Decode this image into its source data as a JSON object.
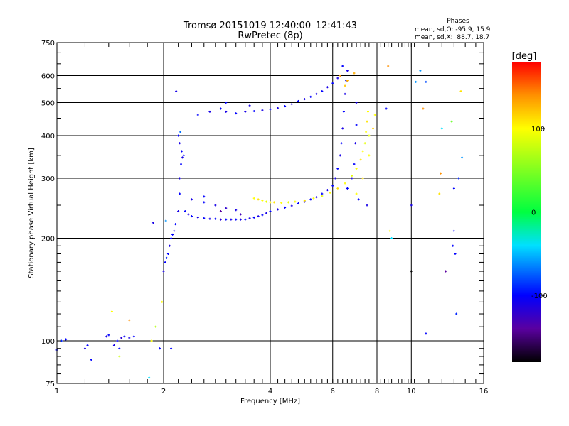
{
  "chart_data": {
    "type": "scatter",
    "title": "Tromsø 20151019 12:40:00–12:41:43",
    "subtitle": "RwPretec (8p)",
    "xlabel": "Frequency [MHz]",
    "ylabel": "Stationary phase Virtual Height [km]",
    "xscale": "log",
    "yscale": "log",
    "xlim": [
      1,
      16
    ],
    "ylim": [
      75,
      750
    ],
    "xticks": [
      1,
      2,
      4,
      6,
      8,
      10,
      16
    ],
    "yticks": [
      75,
      100,
      200,
      300,
      400,
      500,
      600,
      750
    ],
    "grid_x": [
      2,
      4,
      6,
      8,
      10
    ],
    "grid_y": [
      100,
      200,
      300,
      400,
      500,
      600
    ],
    "stats": {
      "heading": "Phases",
      "o_line": "mean, sd,O: -95.9, 15.9",
      "x_line": "mean, sd,X:  88.7, 18.7"
    },
    "colorbar": {
      "label": "[deg]",
      "range": [
        -180,
        180
      ],
      "ticks": [
        {
          "value": 100,
          "label": "100"
        },
        {
          "value": 0,
          "label": "0"
        },
        {
          "value": -100,
          "label": "-100"
        }
      ],
      "stops": [
        [
          -180,
          "#000000"
        ],
        [
          -140,
          "#5a00a0"
        ],
        [
          -100,
          "#0000ff"
        ],
        [
          -40,
          "#00e0ff"
        ],
        [
          0,
          "#00ff40"
        ],
        [
          100,
          "#ffff00"
        ],
        [
          140,
          "#ff9000"
        ],
        [
          180,
          "#ff0000"
        ]
      ]
    },
    "points_columns": [
      "frequency_mhz",
      "height_km",
      "phase_deg"
    ],
    "points": [
      [
        1.0,
        94,
        -100
      ],
      [
        1.03,
        100,
        -90
      ],
      [
        1.06,
        101,
        -100
      ],
      [
        1.2,
        95,
        -110
      ],
      [
        1.22,
        97,
        -100
      ],
      [
        1.25,
        88,
        -100
      ],
      [
        1.38,
        103,
        -110
      ],
      [
        1.4,
        104,
        -100
      ],
      [
        1.45,
        97,
        -110
      ],
      [
        1.48,
        100,
        -100
      ],
      [
        1.5,
        95,
        -100
      ],
      [
        1.52,
        102,
        -120
      ],
      [
        1.55,
        103,
        -100
      ],
      [
        1.6,
        102,
        -110
      ],
      [
        1.65,
        103,
        -100
      ],
      [
        1.43,
        122,
        100
      ],
      [
        1.5,
        90,
        80
      ],
      [
        1.6,
        115,
        140
      ],
      [
        1.82,
        78,
        -40
      ],
      [
        1.85,
        100,
        100
      ],
      [
        1.87,
        222,
        -110
      ],
      [
        1.9,
        110,
        70
      ],
      [
        1.95,
        95,
        -100
      ],
      [
        1.98,
        130,
        100
      ],
      [
        2.0,
        160,
        -110
      ],
      [
        2.02,
        170,
        -100
      ],
      [
        2.04,
        175,
        -90
      ],
      [
        2.06,
        180,
        -100
      ],
      [
        2.08,
        190,
        -110
      ],
      [
        2.1,
        200,
        -100
      ],
      [
        2.12,
        205,
        -100
      ],
      [
        2.14,
        210,
        -110
      ],
      [
        2.16,
        220,
        -100
      ],
      [
        2.03,
        225,
        -60
      ],
      [
        2.1,
        95,
        -100
      ],
      [
        2.2,
        240,
        -110
      ],
      [
        2.22,
        270,
        -100
      ],
      [
        2.22,
        300,
        -110
      ],
      [
        2.24,
        330,
        -100
      ],
      [
        2.25,
        360,
        -100
      ],
      [
        2.26,
        345,
        -110
      ],
      [
        2.2,
        400,
        -100
      ],
      [
        2.22,
        380,
        -110
      ],
      [
        2.28,
        350,
        -100
      ],
      [
        2.17,
        540,
        -110
      ],
      [
        2.23,
        410,
        -70
      ],
      [
        2.3,
        240,
        -100
      ],
      [
        2.35,
        235,
        -110
      ],
      [
        2.4,
        232,
        -100
      ],
      [
        2.5,
        230,
        -110
      ],
      [
        2.6,
        229,
        -100
      ],
      [
        2.7,
        228,
        -110
      ],
      [
        2.8,
        228,
        -100
      ],
      [
        2.9,
        227,
        -120
      ],
      [
        3.0,
        227,
        -100
      ],
      [
        3.1,
        227,
        -110
      ],
      [
        3.2,
        227,
        -100
      ],
      [
        3.3,
        227,
        -110
      ],
      [
        3.4,
        227,
        -100
      ],
      [
        3.5,
        229,
        -110
      ],
      [
        3.6,
        230,
        -100
      ],
      [
        3.7,
        232,
        -110
      ],
      [
        3.8,
        234,
        -100
      ],
      [
        3.9,
        237,
        -110
      ],
      [
        4.0,
        240,
        -100
      ],
      [
        4.2,
        243,
        -110
      ],
      [
        4.4,
        246,
        -100
      ],
      [
        4.6,
        249,
        -110
      ],
      [
        4.8,
        253,
        -100
      ],
      [
        5.0,
        256,
        -110
      ],
      [
        5.2,
        260,
        -100
      ],
      [
        5.4,
        264,
        -110
      ],
      [
        5.6,
        270,
        -100
      ],
      [
        5.8,
        277,
        -110
      ],
      [
        6.0,
        285,
        -100
      ],
      [
        6.1,
        300,
        -110
      ],
      [
        6.2,
        320,
        -100
      ],
      [
        6.3,
        350,
        -110
      ],
      [
        6.35,
        380,
        -100
      ],
      [
        6.4,
        420,
        -110
      ],
      [
        6.45,
        470,
        -100
      ],
      [
        6.5,
        530,
        -110
      ],
      [
        6.55,
        580,
        -100
      ],
      [
        6.6,
        620,
        -110
      ],
      [
        6.4,
        640,
        -100
      ],
      [
        2.4,
        260,
        -110
      ],
      [
        2.6,
        255,
        -100
      ],
      [
        2.8,
        250,
        -110
      ],
      [
        3.0,
        245,
        -120
      ],
      [
        3.2,
        242,
        -110
      ],
      [
        2.6,
        265,
        -100
      ],
      [
        2.9,
        240,
        -140
      ],
      [
        3.3,
        235,
        -130
      ],
      [
        2.5,
        460,
        -100
      ],
      [
        2.7,
        470,
        -110
      ],
      [
        2.9,
        480,
        -100
      ],
      [
        3.0,
        470,
        -110
      ],
      [
        3.2,
        465,
        -100
      ],
      [
        3.4,
        470,
        -110
      ],
      [
        3.6,
        472,
        -100
      ],
      [
        3.8,
        475,
        -110
      ],
      [
        4.0,
        478,
        -100
      ],
      [
        4.2,
        482,
        -110
      ],
      [
        4.4,
        488,
        -100
      ],
      [
        4.6,
        495,
        -110
      ],
      [
        4.8,
        505,
        -100
      ],
      [
        5.0,
        512,
        -110
      ],
      [
        5.2,
        520,
        -100
      ],
      [
        5.4,
        530,
        -110
      ],
      [
        5.6,
        540,
        -100
      ],
      [
        5.8,
        555,
        -110
      ],
      [
        6.0,
        570,
        -100
      ],
      [
        6.2,
        590,
        -110
      ],
      [
        3.0,
        500,
        -100
      ],
      [
        3.5,
        490,
        -110
      ],
      [
        6.3,
        600,
        140
      ],
      [
        6.5,
        560,
        120
      ],
      [
        6.6,
        580,
        130
      ],
      [
        6.9,
        610,
        130
      ],
      [
        3.6,
        262,
        100
      ],
      [
        3.7,
        260,
        110
      ],
      [
        3.8,
        258,
        100
      ],
      [
        3.9,
        256,
        90
      ],
      [
        4.0,
        255,
        100
      ],
      [
        4.1,
        255,
        110
      ],
      [
        4.3,
        254,
        100
      ],
      [
        4.5,
        255,
        90
      ],
      [
        4.7,
        256,
        100
      ],
      [
        5.0,
        258,
        110
      ],
      [
        5.3,
        262,
        100
      ],
      [
        5.6,
        266,
        90
      ],
      [
        5.9,
        272,
        100
      ],
      [
        6.2,
        280,
        110
      ],
      [
        6.5,
        290,
        100
      ],
      [
        6.8,
        305,
        90
      ],
      [
        7.0,
        320,
        100
      ],
      [
        7.2,
        340,
        110
      ],
      [
        7.3,
        360,
        100
      ],
      [
        7.4,
        380,
        90
      ],
      [
        7.45,
        410,
        100
      ],
      [
        7.5,
        440,
        110
      ],
      [
        7.55,
        470,
        100
      ],
      [
        7.6,
        400,
        90
      ],
      [
        7.0,
        270,
        100
      ],
      [
        7.3,
        300,
        110
      ],
      [
        7.6,
        350,
        100
      ],
      [
        7.8,
        420,
        120
      ],
      [
        7.9,
        460,
        100
      ],
      [
        6.6,
        280,
        -100
      ],
      [
        6.8,
        300,
        -110
      ],
      [
        6.9,
        330,
        -100
      ],
      [
        6.95,
        380,
        -110
      ],
      [
        7.0,
        430,
        -100
      ],
      [
        7.0,
        500,
        -110
      ],
      [
        7.1,
        260,
        -100
      ],
      [
        7.5,
        250,
        -110
      ],
      [
        8.6,
        640,
        140
      ],
      [
        8.7,
        210,
        100
      ],
      [
        8.8,
        200,
        -40
      ],
      [
        8.5,
        480,
        -100
      ],
      [
        10.0,
        250,
        -110
      ],
      [
        10.0,
        160,
        -180
      ],
      [
        10.3,
        575,
        -60
      ],
      [
        10.6,
        620,
        -60
      ],
      [
        10.8,
        480,
        140
      ],
      [
        11.0,
        105,
        -100
      ],
      [
        11.0,
        575,
        -80
      ],
      [
        12.1,
        310,
        140
      ],
      [
        12.0,
        270,
        110
      ],
      [
        12.2,
        420,
        -40
      ],
      [
        12.5,
        160,
        -140
      ],
      [
        13.0,
        440,
        40
      ],
      [
        13.2,
        280,
        -100
      ],
      [
        13.2,
        210,
        -100
      ],
      [
        13.3,
        180,
        -100
      ],
      [
        13.4,
        120,
        -90
      ],
      [
        13.8,
        540,
        110
      ],
      [
        13.9,
        345,
        -60
      ],
      [
        13.6,
        300,
        -90
      ],
      [
        13.1,
        190,
        -100
      ]
    ]
  }
}
